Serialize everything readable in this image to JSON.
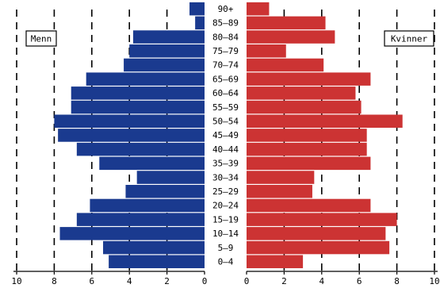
{
  "chart_data": {
    "type": "bar",
    "orientation": "horizontal-population-pyramid",
    "categories": [
      "0–4",
      "5–9",
      "10–14",
      "15–19",
      "20–24",
      "25–29",
      "30–34",
      "35–39",
      "40–44",
      "45–49",
      "50–54",
      "55–59",
      "60–64",
      "65–69",
      "70–74",
      "75–79",
      "80–84",
      "85–89",
      "90+"
    ],
    "series": [
      {
        "name": "Menn",
        "side": "left",
        "color": "#1a3a8f",
        "values": [
          5.1,
          5.4,
          7.7,
          6.8,
          6.1,
          4.2,
          3.6,
          5.6,
          6.8,
          7.8,
          8.0,
          7.1,
          7.1,
          6.3,
          4.3,
          4.0,
          3.8,
          0.5,
          0.8
        ]
      },
      {
        "name": "Kvinner",
        "side": "right",
        "color": "#cc3333",
        "values": [
          3.0,
          7.6,
          7.4,
          8.0,
          6.6,
          3.5,
          3.6,
          6.6,
          6.4,
          6.4,
          8.3,
          6.1,
          5.8,
          6.6,
          4.1,
          2.1,
          4.7,
          4.2,
          1.2
        ]
      }
    ],
    "xlim": [
      0,
      10
    ],
    "x_ticks_left": [
      "10",
      "8",
      "6",
      "4",
      "2",
      "0"
    ],
    "x_ticks_right": [
      "0",
      "2",
      "4",
      "6",
      "8",
      "10"
    ],
    "grid": true,
    "legend": {
      "left_label": "Menn",
      "right_label": "Kvinner"
    }
  }
}
